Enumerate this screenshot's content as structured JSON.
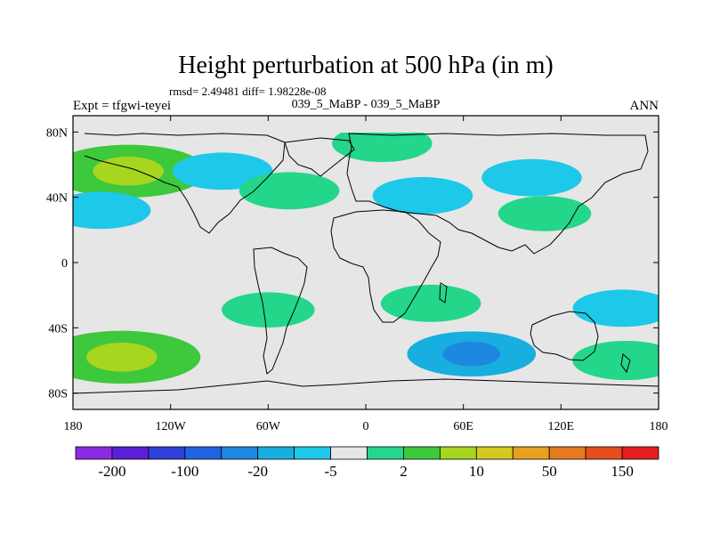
{
  "chart_data": {
    "type": "heatmap",
    "title": "Height perturbation at 500 hPa (in m)",
    "stats_line": "rmsd= 2.49481 diff= 1.98228e-08",
    "left_label": "Expt = tfgwi-teyei",
    "center_label": "039_5_MaBP - 039_5_MaBP",
    "right_label": "ANN",
    "x_axis": {
      "range": [
        -180,
        180
      ],
      "ticks": [
        -180,
        -120,
        -60,
        0,
        60,
        120,
        180
      ],
      "tick_labels": [
        "180",
        "120W",
        "60W",
        "0",
        "60E",
        "120E",
        "180"
      ]
    },
    "y_axis": {
      "range": [
        -90,
        90
      ],
      "ticks": [
        80,
        40,
        0,
        -40,
        -80
      ],
      "tick_labels": [
        "80N",
        "40N",
        "0",
        "40S",
        "80S"
      ]
    },
    "colorbar": {
      "colors": [
        "#8a2be2",
        "#5a1fd6",
        "#2f3fd8",
        "#1f63e0",
        "#1e88e0",
        "#19aee0",
        "#1ec8e8",
        "#e6e6e6",
        "#24d68a",
        "#3ec83c",
        "#a6d61e",
        "#d6c81e",
        "#e6a21e",
        "#e67a1e",
        "#e64e1e",
        "#e61e1e"
      ],
      "labels": [
        "-200",
        "-100",
        "-20",
        "-5",
        "2",
        "10",
        "50",
        "150"
      ]
    },
    "anomaly_regions": [
      {
        "lon": -146,
        "lat": 56,
        "value": 12
      },
      {
        "lon": -163,
        "lat": 32,
        "value": -4
      },
      {
        "lon": -88,
        "lat": 56,
        "value": -4
      },
      {
        "lon": -47,
        "lat": 44,
        "value": 4
      },
      {
        "lon": 10,
        "lat": 73,
        "value": 4
      },
      {
        "lon": 35,
        "lat": 41,
        "value": -4
      },
      {
        "lon": 102,
        "lat": 52,
        "value": -4
      },
      {
        "lon": 110,
        "lat": 30,
        "value": 3
      },
      {
        "lon": 40,
        "lat": -25,
        "value": 4
      },
      {
        "lon": 158,
        "lat": -28,
        "value": -4
      },
      {
        "lon": -150,
        "lat": -58,
        "value": 12
      },
      {
        "lon": 65,
        "lat": -56,
        "value": -8
      },
      {
        "lon": 160,
        "lat": -60,
        "value": 5
      },
      {
        "lon": -60,
        "lat": -29,
        "value": 3
      }
    ]
  }
}
